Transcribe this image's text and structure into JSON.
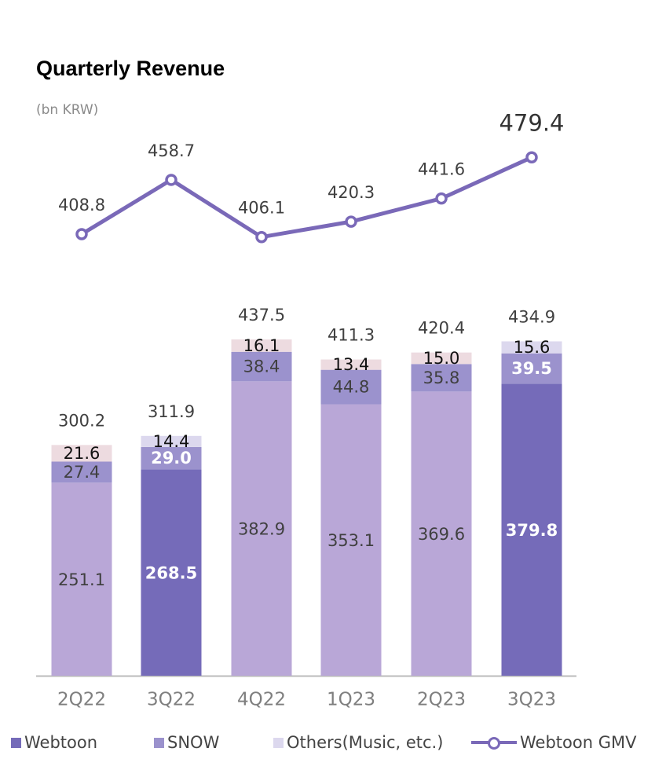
{
  "header": {
    "title": "Quarterly Revenue",
    "unit": "(bn KRW)"
  },
  "colors": {
    "webtoon": "#756bb9",
    "webtoon_light": "#b9a7d7",
    "snow": "#9b92cd",
    "others": "#eddbe0",
    "others_light": "#dcd8ee",
    "gmv_line": "#7a69b8",
    "axis": "#bbbbbb",
    "text": "#404040"
  },
  "legend": {
    "webtoon": "Webtoon",
    "snow": "SNOW",
    "others": "Others(Music, etc.)",
    "gmv": "Webtoon GMV"
  },
  "chart_data": {
    "type": "bar",
    "stacked": true,
    "categories": [
      "2Q22",
      "3Q22",
      "4Q22",
      "1Q23",
      "2Q23",
      "3Q23"
    ],
    "series": [
      {
        "name": "Webtoon",
        "values": [
          251.1,
          268.5,
          382.9,
          353.1,
          369.6,
          379.8
        ]
      },
      {
        "name": "SNOW",
        "values": [
          27.4,
          29.0,
          38.4,
          44.8,
          35.8,
          39.5
        ]
      },
      {
        "name": "Others(Music, etc.)",
        "values": [
          21.6,
          14.4,
          16.1,
          13.4,
          15.0,
          15.6
        ]
      }
    ],
    "totals": [
      "300.2",
      "311.9",
      "437.5",
      "411.3",
      "420.4",
      "434.9"
    ],
    "highlighted_quarters": [
      "3Q22",
      "3Q23"
    ],
    "line": {
      "name": "Webtoon GMV",
      "values": [
        408.8,
        458.7,
        406.1,
        420.3,
        441.6,
        479.4
      ]
    },
    "title": "Quarterly Revenue",
    "ylabel": "(bn KRW)",
    "legend_position": "bottom"
  }
}
